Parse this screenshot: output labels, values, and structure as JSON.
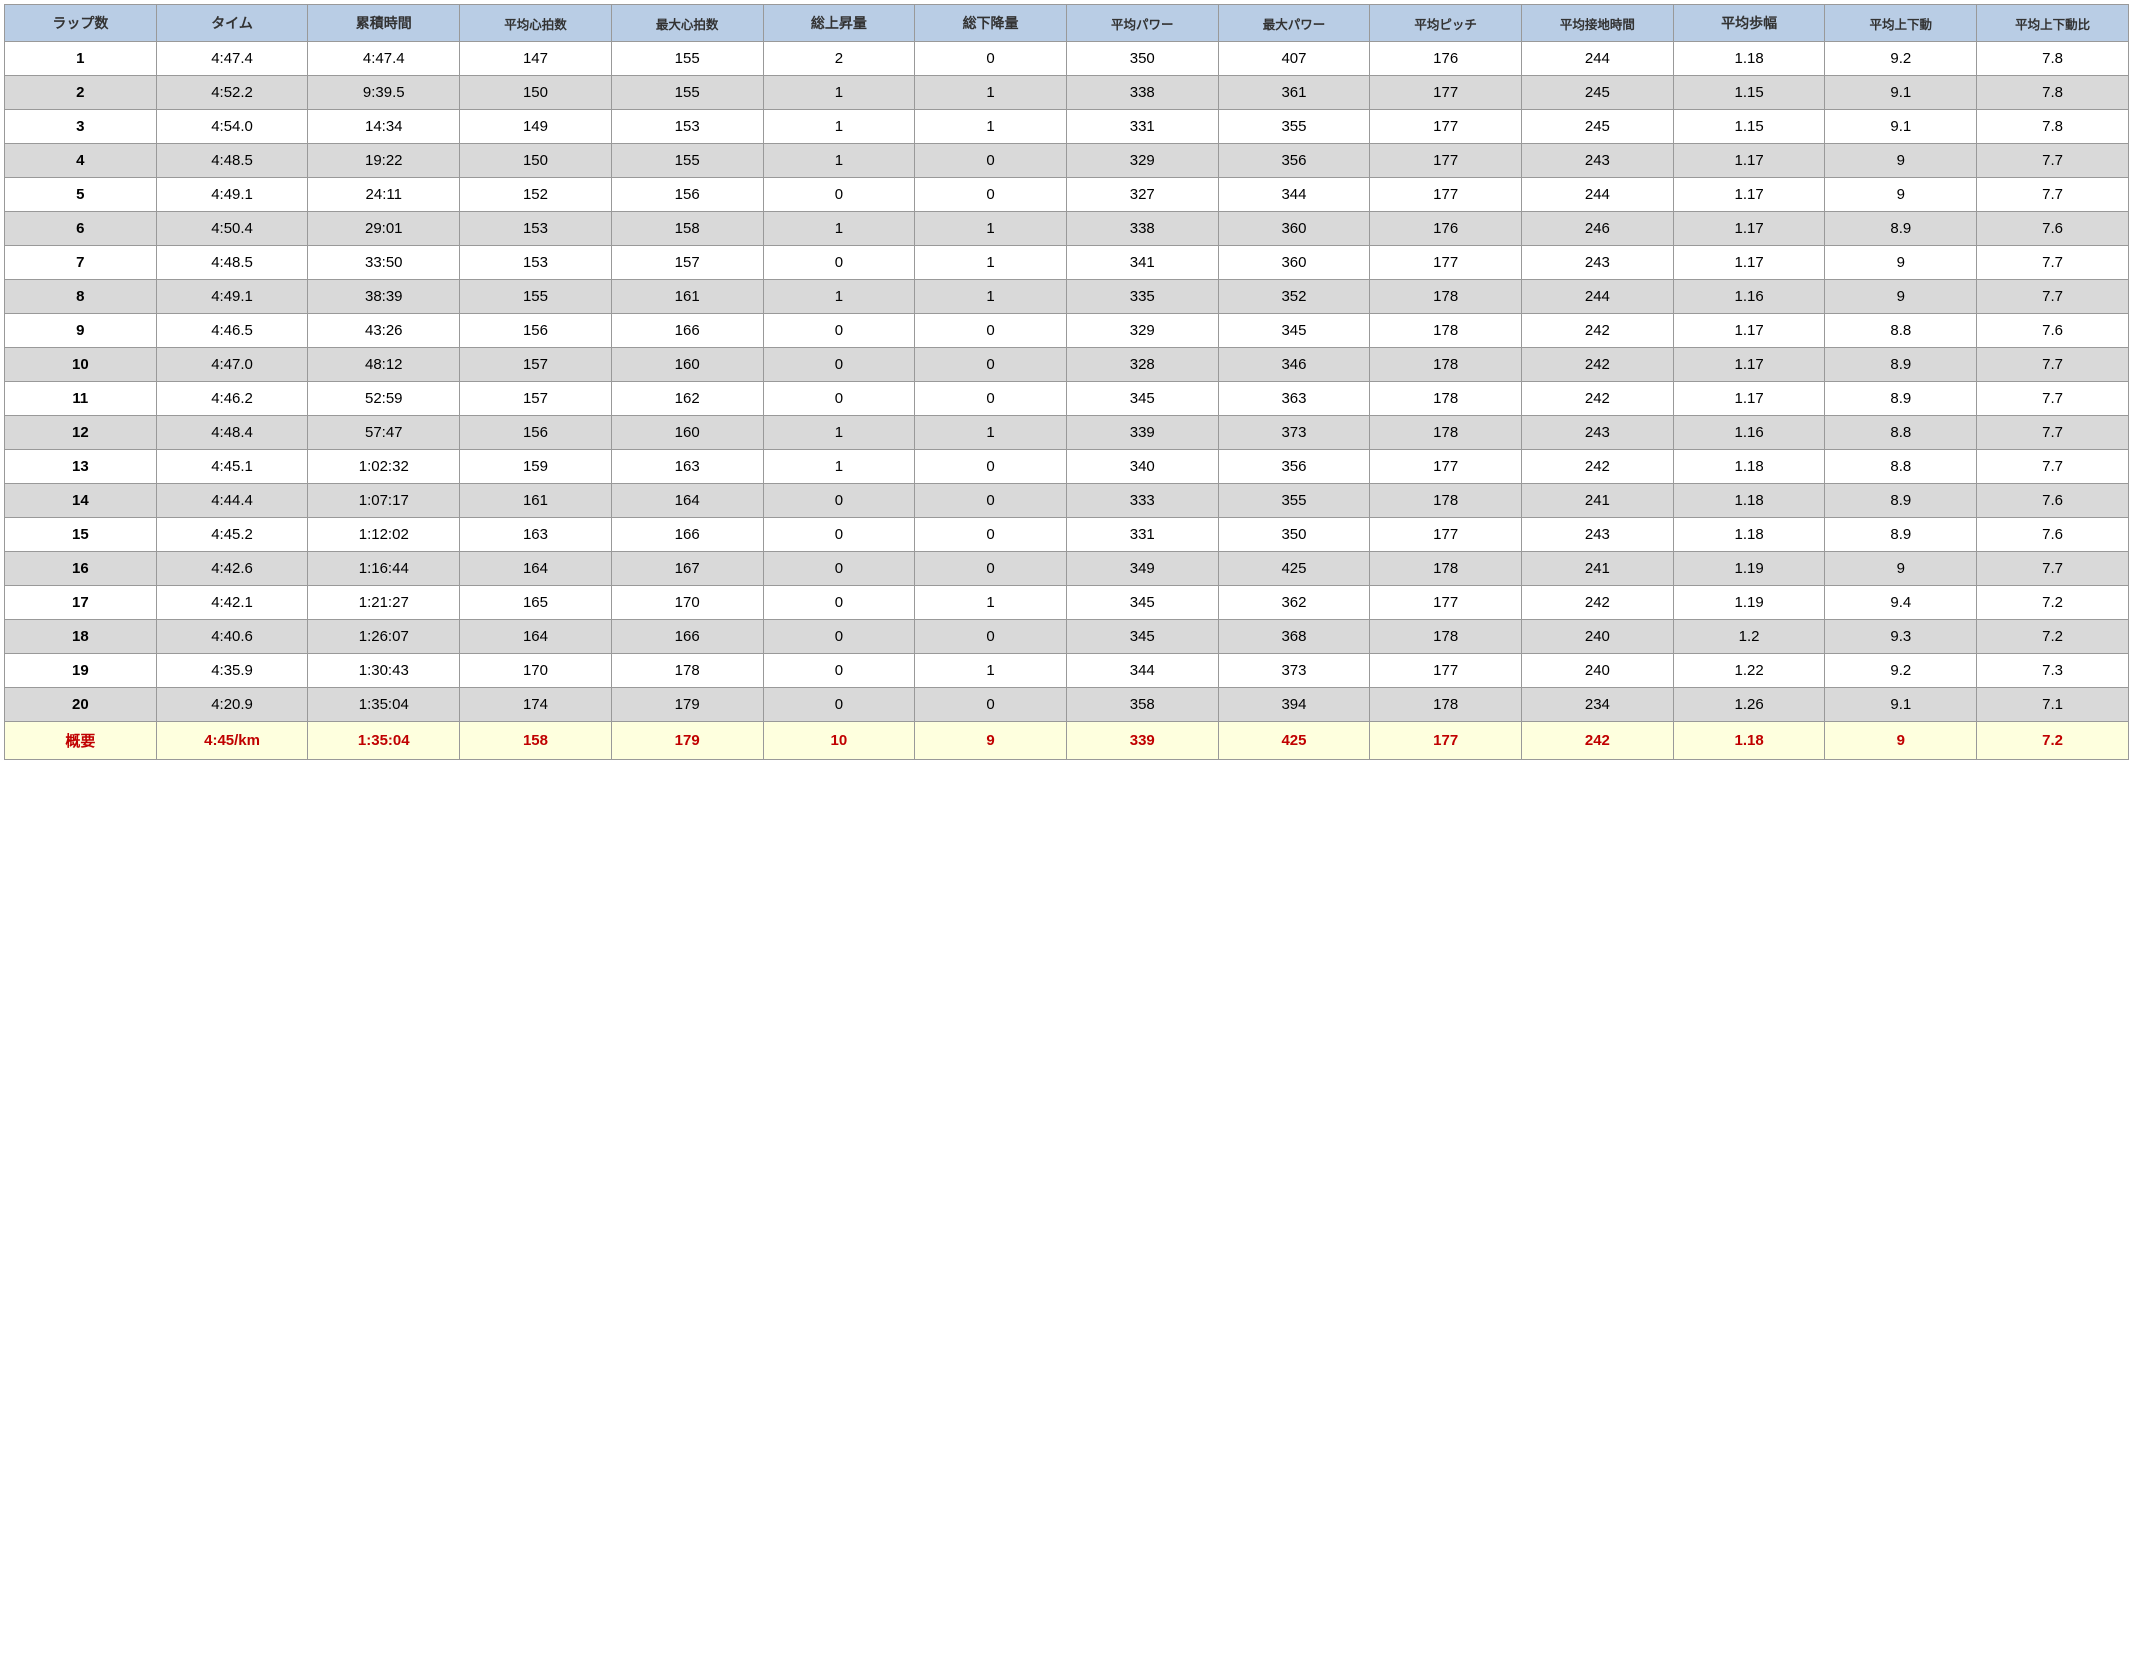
{
  "table": {
    "type": "table",
    "header_bg": "#b9cde5",
    "row_odd_bg": "#ffffff",
    "row_even_bg": "#d9d9d9",
    "summary_bg": "#feffde",
    "summary_color": "#c00000",
    "border_color": "#999999",
    "columns": [
      {
        "label": "ラップ数",
        "small": false
      },
      {
        "label": "タイム",
        "small": false
      },
      {
        "label": "累積時間",
        "small": false
      },
      {
        "label": "平均心拍数",
        "small": true
      },
      {
        "label": "最大心拍数",
        "small": true
      },
      {
        "label": "総上昇量",
        "small": false
      },
      {
        "label": "総下降量",
        "small": false
      },
      {
        "label": "平均パワー",
        "small": true
      },
      {
        "label": "最大パワー",
        "small": true
      },
      {
        "label": "平均ピッチ",
        "small": true
      },
      {
        "label": "平均接地時間",
        "small": true
      },
      {
        "label": "平均歩幅",
        "small": false
      },
      {
        "label": "平均上下動",
        "small": true
      },
      {
        "label": "平均上下動比",
        "small": true
      }
    ],
    "rows": [
      [
        "1",
        "4:47.4",
        "4:47.4",
        "147",
        "155",
        "2",
        "0",
        "350",
        "407",
        "176",
        "244",
        "1.18",
        "9.2",
        "7.8"
      ],
      [
        "2",
        "4:52.2",
        "9:39.5",
        "150",
        "155",
        "1",
        "1",
        "338",
        "361",
        "177",
        "245",
        "1.15",
        "9.1",
        "7.8"
      ],
      [
        "3",
        "4:54.0",
        "14:34",
        "149",
        "153",
        "1",
        "1",
        "331",
        "355",
        "177",
        "245",
        "1.15",
        "9.1",
        "7.8"
      ],
      [
        "4",
        "4:48.5",
        "19:22",
        "150",
        "155",
        "1",
        "0",
        "329",
        "356",
        "177",
        "243",
        "1.17",
        "9",
        "7.7"
      ],
      [
        "5",
        "4:49.1",
        "24:11",
        "152",
        "156",
        "0",
        "0",
        "327",
        "344",
        "177",
        "244",
        "1.17",
        "9",
        "7.7"
      ],
      [
        "6",
        "4:50.4",
        "29:01",
        "153",
        "158",
        "1",
        "1",
        "338",
        "360",
        "176",
        "246",
        "1.17",
        "8.9",
        "7.6"
      ],
      [
        "7",
        "4:48.5",
        "33:50",
        "153",
        "157",
        "0",
        "1",
        "341",
        "360",
        "177",
        "243",
        "1.17",
        "9",
        "7.7"
      ],
      [
        "8",
        "4:49.1",
        "38:39",
        "155",
        "161",
        "1",
        "1",
        "335",
        "352",
        "178",
        "244",
        "1.16",
        "9",
        "7.7"
      ],
      [
        "9",
        "4:46.5",
        "43:26",
        "156",
        "166",
        "0",
        "0",
        "329",
        "345",
        "178",
        "242",
        "1.17",
        "8.8",
        "7.6"
      ],
      [
        "10",
        "4:47.0",
        "48:12",
        "157",
        "160",
        "0",
        "0",
        "328",
        "346",
        "178",
        "242",
        "1.17",
        "8.9",
        "7.7"
      ],
      [
        "11",
        "4:46.2",
        "52:59",
        "157",
        "162",
        "0",
        "0",
        "345",
        "363",
        "178",
        "242",
        "1.17",
        "8.9",
        "7.7"
      ],
      [
        "12",
        "4:48.4",
        "57:47",
        "156",
        "160",
        "1",
        "1",
        "339",
        "373",
        "178",
        "243",
        "1.16",
        "8.8",
        "7.7"
      ],
      [
        "13",
        "4:45.1",
        "1:02:32",
        "159",
        "163",
        "1",
        "0",
        "340",
        "356",
        "177",
        "242",
        "1.18",
        "8.8",
        "7.7"
      ],
      [
        "14",
        "4:44.4",
        "1:07:17",
        "161",
        "164",
        "0",
        "0",
        "333",
        "355",
        "178",
        "241",
        "1.18",
        "8.9",
        "7.6"
      ],
      [
        "15",
        "4:45.2",
        "1:12:02",
        "163",
        "166",
        "0",
        "0",
        "331",
        "350",
        "177",
        "243",
        "1.18",
        "8.9",
        "7.6"
      ],
      [
        "16",
        "4:42.6",
        "1:16:44",
        "164",
        "167",
        "0",
        "0",
        "349",
        "425",
        "178",
        "241",
        "1.19",
        "9",
        "7.7"
      ],
      [
        "17",
        "4:42.1",
        "1:21:27",
        "165",
        "170",
        "0",
        "1",
        "345",
        "362",
        "177",
        "242",
        "1.19",
        "9.4",
        "7.2"
      ],
      [
        "18",
        "4:40.6",
        "1:26:07",
        "164",
        "166",
        "0",
        "0",
        "345",
        "368",
        "178",
        "240",
        "1.2",
        "9.3",
        "7.2"
      ],
      [
        "19",
        "4:35.9",
        "1:30:43",
        "170",
        "178",
        "0",
        "1",
        "344",
        "373",
        "177",
        "240",
        "1.22",
        "9.2",
        "7.3"
      ],
      [
        "20",
        "4:20.9",
        "1:35:04",
        "174",
        "179",
        "0",
        "0",
        "358",
        "394",
        "178",
        "234",
        "1.26",
        "9.1",
        "7.1"
      ]
    ],
    "summary": [
      "概要",
      "4:45/km",
      "1:35:04",
      "158",
      "179",
      "10",
      "9",
      "339",
      "425",
      "177",
      "242",
      "1.18",
      "9",
      "7.2"
    ]
  }
}
